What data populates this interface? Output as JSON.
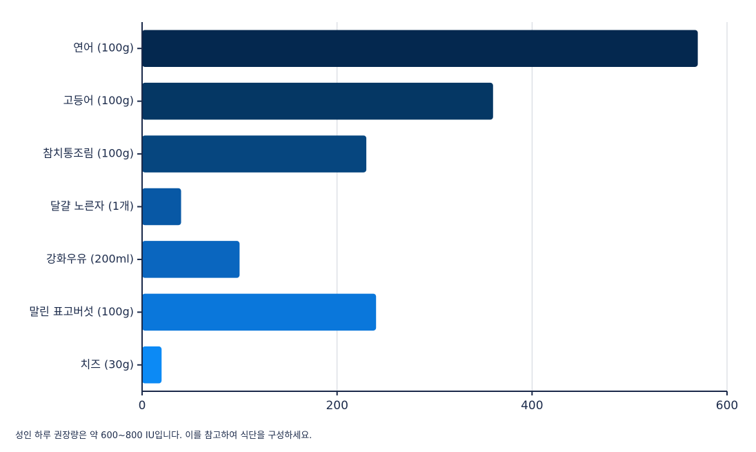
{
  "chart_data": {
    "type": "bar",
    "orientation": "horizontal",
    "categories": [
      "연어 (100g)",
      "고등어 (100g)",
      "참치통조림 (100g)",
      "달걀 노른자 (1개)",
      "강화우유 (200ml)",
      "말린 표고버섯 (100g)",
      "치즈 (30g)"
    ],
    "values": [
      570,
      360,
      230,
      40,
      100,
      240,
      20
    ],
    "colors": [
      "#04284f",
      "#053764",
      "#06467f",
      "#0858a5",
      "#0a66bf",
      "#0a77db",
      "#0c8af5"
    ],
    "xticks": [
      0,
      200,
      400,
      600
    ],
    "xlim": [
      0,
      600
    ],
    "grid": true,
    "title": "",
    "xlabel": "",
    "ylabel": ""
  },
  "footnote": "성인 하루 권장량은 약 600~800 IU입니다. 이를 참고하여 식단을 구성하세요."
}
